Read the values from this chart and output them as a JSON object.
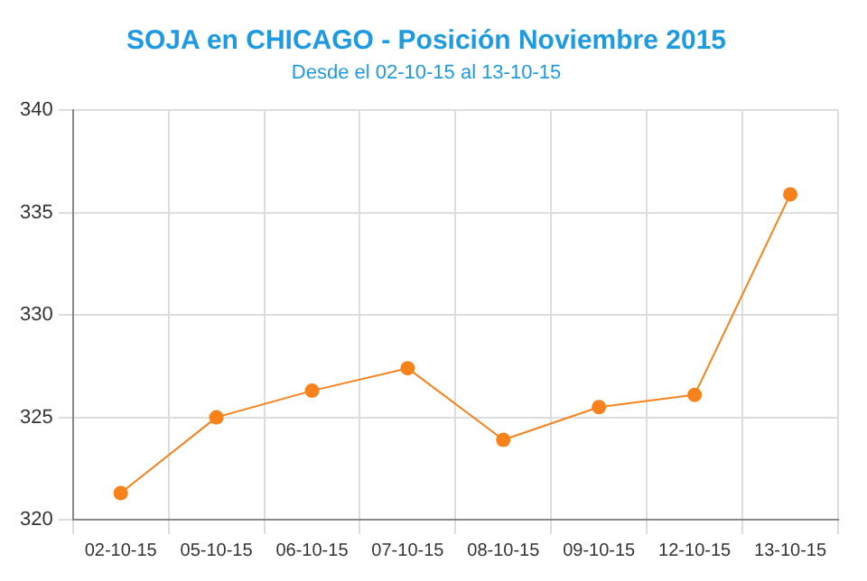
{
  "chart_data": {
    "type": "line",
    "title": "SOJA en CHICAGO - Posición Noviembre 2015",
    "subtitle": "Desde el 02-10-15 al 13-10-15",
    "categories": [
      "02-10-15",
      "05-10-15",
      "06-10-15",
      "07-10-15",
      "08-10-15",
      "09-10-15",
      "12-10-15",
      "13-10-15"
    ],
    "series": [
      {
        "color": "#f7821b",
        "values": [
          321.3,
          325.0,
          326.3,
          327.4,
          323.9,
          325.5,
          326.1,
          335.9
        ]
      }
    ],
    "ylim": [
      320,
      340
    ],
    "yticks": [
      320,
      325,
      330,
      335,
      340
    ],
    "grid": true,
    "marker": "circle",
    "line_style": "solid",
    "legend": false
  }
}
